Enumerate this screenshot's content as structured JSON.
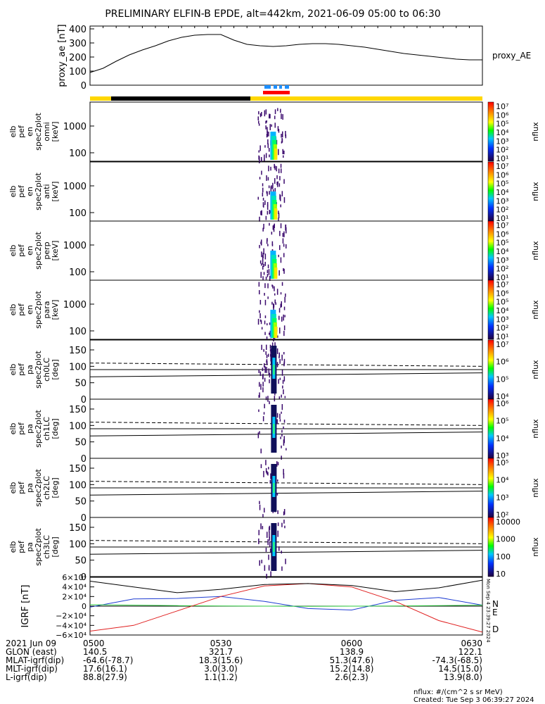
{
  "title": "PRELIMINARY ELFIN-B EPDE, alt=442km, 2021-06-09 05:00 to 06:30",
  "ae_panel": {
    "ylabel": "proxy_ae [nT]",
    "series_label": "proxy_AE",
    "yticks": [
      "400",
      "300",
      "200",
      "100",
      "0"
    ],
    "ylim": [
      0,
      420
    ]
  },
  "orbit_bar": {
    "colors": {
      "sun": "#ffd700",
      "shadow": "#000000",
      "science": "#ff0000",
      "fast": "#1e90ff"
    }
  },
  "spec_panels": [
    {
      "ylabel": [
        "elb",
        "pef",
        "en",
        "spec2plot",
        "omni",
        "[keV]"
      ],
      "yticks": [
        "1000",
        "100"
      ]
    },
    {
      "ylabel": [
        "elb",
        "pef",
        "en",
        "spec2plot",
        "anti",
        "[keV]"
      ],
      "yticks": [
        "1000",
        "100"
      ]
    },
    {
      "ylabel": [
        "elb",
        "pef",
        "en",
        "spec2plot",
        "perp",
        "[keV]"
      ],
      "yticks": [
        "1000",
        "100"
      ]
    },
    {
      "ylabel": [
        "elb",
        "pef",
        "en",
        "spec2plot",
        "para",
        "[keV]"
      ],
      "yticks": [
        "1000",
        "100"
      ]
    }
  ],
  "pa_panels": [
    {
      "ylabel": [
        "elb",
        "pef",
        "pa",
        "spec2plot",
        "ch0LC",
        "[deg]"
      ],
      "yticks": [
        "150",
        "100",
        "50",
        "0"
      ]
    },
    {
      "ylabel": [
        "elb",
        "pef",
        "pa",
        "spec2plot",
        "ch1LC",
        "[deg]"
      ],
      "yticks": [
        "150",
        "100",
        "50",
        "0"
      ]
    },
    {
      "ylabel": [
        "elb",
        "pef",
        "pa",
        "spec2plot",
        "ch2LC",
        "[deg]"
      ],
      "yticks": [
        "150",
        "100",
        "50",
        "0"
      ]
    },
    {
      "ylabel": [
        "elb",
        "pef",
        "pa",
        "spec2plot",
        "ch3LC",
        "[deg]"
      ],
      "yticks": [
        "150",
        "100",
        "50",
        "0"
      ]
    }
  ],
  "colorbars": [
    {
      "unit": "nflux",
      "ticks": [
        "10⁷",
        "10⁶",
        "10⁵",
        "10⁴",
        "10³",
        "10²",
        "10¹"
      ]
    },
    {
      "unit": "nflux",
      "ticks": [
        "10⁷",
        "10⁶",
        "10⁵",
        "10⁴",
        "10³",
        "10²",
        "10¹"
      ]
    },
    {
      "unit": "nflux",
      "ticks": [
        "10⁷",
        "10⁶",
        "10⁵",
        "10⁴",
        "10³",
        "10²",
        "10¹"
      ]
    },
    {
      "unit": "nflux",
      "ticks": [
        "10⁷",
        "10⁶",
        "10⁵",
        "10⁴",
        "10³",
        "10²",
        "10¹"
      ]
    },
    {
      "unit": "nflux",
      "ticks": [
        "10⁷",
        "10⁶",
        "10⁵",
        "10⁴"
      ]
    },
    {
      "unit": "nflux",
      "ticks": [
        "10⁶",
        "10⁵",
        "10⁴",
        "10³"
      ]
    },
    {
      "unit": "nflux",
      "ticks": [
        "10⁵",
        "10⁴",
        "10³",
        "10²"
      ]
    },
    {
      "unit": "nflux",
      "ticks": [
        "10000",
        "1000",
        "100",
        "10"
      ]
    }
  ],
  "igrf_panel": {
    "ylabel": "IGRF [nT]",
    "yticks": [
      "6×10⁴",
      "4×10⁴",
      "2×10⁴",
      "0",
      "−2×10⁴",
      "−4×10⁴",
      "−6×10⁴"
    ],
    "legend": [
      "N",
      "E",
      "D"
    ],
    "legend_colors": [
      "#1e3cd2",
      "#2ecc40",
      "#e02020"
    ],
    "side_text": "Mon Sep  4 23:39:27 2024"
  },
  "footer": {
    "rows": [
      {
        "label": "2021 Jun 09",
        "values": [
          "0500",
          "0530",
          "0600",
          "0630"
        ]
      },
      {
        "label": "GLON (east)",
        "values": [
          "140.5",
          "321.7",
          "138.9",
          "122.1"
        ]
      },
      {
        "label": "MLAT-igrf(dip)",
        "values": [
          "-64.6(-78.7)",
          "18.3(15.6)",
          "51.3(47.6)",
          "-74.3(-68.5)"
        ]
      },
      {
        "label": "MLT-igrf(dip)",
        "values": [
          "17.6(16.1)",
          "3.0(3.0)",
          "15.2(14.8)",
          "14.5(15.0)"
        ]
      },
      {
        "label": "L-igrf(dip)",
        "values": [
          "88.8(27.9)",
          "1.1(1.2)",
          "2.6(2.3)",
          "13.9(8.0)"
        ]
      }
    ],
    "units_note": "nflux: #/(cm^2 s sr MeV)",
    "created": "Created: Tue Sep  3 06:39:27 2024"
  },
  "chart_data": [
    {
      "type": "line",
      "title": "PRELIMINARY ELFIN-B EPDE, alt=442km, 2021-06-09 05:00 to 06:30",
      "ylabel": "proxy_ae [nT]",
      "xlim": [
        "05:00",
        "06:30"
      ],
      "ylim": [
        0,
        420
      ],
      "series": [
        {
          "name": "proxy_AE",
          "x": [
            "05:00",
            "05:03",
            "05:06",
            "05:09",
            "05:12",
            "05:15",
            "05:18",
            "05:21",
            "05:24",
            "05:27",
            "05:30",
            "05:33",
            "05:36",
            "05:39",
            "05:42",
            "05:45",
            "05:48",
            "05:51",
            "05:54",
            "05:57",
            "06:00",
            "06:03",
            "06:06",
            "06:09",
            "06:12",
            "06:15",
            "06:18",
            "06:21",
            "06:24",
            "06:27",
            "06:30"
          ],
          "values": [
            90,
            120,
            170,
            215,
            250,
            280,
            315,
            340,
            355,
            360,
            360,
            320,
            290,
            280,
            275,
            280,
            290,
            295,
            295,
            290,
            280,
            270,
            255,
            240,
            225,
            215,
            205,
            195,
            185,
            180,
            180
          ]
        }
      ]
    },
    {
      "type": "heatmap",
      "title": "elb pef en spec2plot omni/anti/perp/para, ch0LC-ch3LC",
      "xlim": [
        "05:00",
        "06:30"
      ],
      "ylabel": "[keV] / [deg]",
      "colorbar": "nflux",
      "burst_interval": [
        "05:40",
        "05:45"
      ]
    },
    {
      "type": "line",
      "ylabel": "IGRF [nT]",
      "xlim": [
        "05:00",
        "06:30"
      ],
      "ylim": [
        -60000,
        60000
      ],
      "series": [
        {
          "name": "N",
          "x": [
            "05:00",
            "05:10",
            "05:20",
            "05:30",
            "05:40",
            "05:50",
            "06:00",
            "06:10",
            "06:20",
            "06:30"
          ],
          "values": [
            -2000,
            15000,
            16000,
            20000,
            10000,
            -5000,
            -8000,
            12000,
            18000,
            2000
          ]
        },
        {
          "name": "E",
          "x": [
            "05:00",
            "05:10",
            "05:20",
            "05:30",
            "05:40",
            "05:50",
            "06:00",
            "06:10",
            "06:20",
            "06:30"
          ],
          "values": [
            3000,
            2000,
            1000,
            500,
            0,
            -500,
            0,
            500,
            1000,
            2000
          ]
        },
        {
          "name": "D",
          "x": [
            "05:00",
            "05:10",
            "05:20",
            "05:30",
            "05:40",
            "05:50",
            "06:00",
            "06:10",
            "06:20",
            "06:30"
          ],
          "values": [
            -52000,
            -40000,
            -10000,
            20000,
            42000,
            47000,
            40000,
            10000,
            -30000,
            -54000
          ]
        },
        {
          "x": [
            "05:00",
            "05:10",
            "05:20",
            "05:30",
            "05:40",
            "05:50",
            "06:00",
            "06:10",
            "06:20",
            "06:30"
          ],
          "values": [
            52000,
            40000,
            28000,
            35000,
            45000,
            47000,
            43000,
            30000,
            38000,
            54000
          ]
        }
      ]
    }
  ]
}
